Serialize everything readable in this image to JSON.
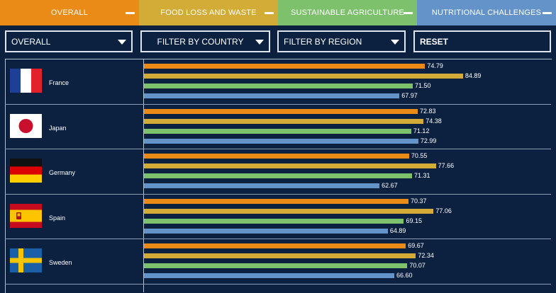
{
  "tabs": [
    {
      "label": "OVERALL",
      "color": "#e98b16"
    },
    {
      "label": "FOOD LOSS AND WASTE",
      "color": "#d3ac37"
    },
    {
      "label": "SUSTAINABLE AGRICULTURE",
      "color": "#7ec16d"
    },
    {
      "label": "NUTRITIONAL CHALLENGES",
      "color": "#6493c9"
    }
  ],
  "filters": {
    "category": "OVERALL",
    "country": "FILTER BY COUNTRY",
    "region": "FILTER BY REGION",
    "reset": "RESET"
  },
  "chart_data": {
    "type": "bar",
    "categories": [
      "France",
      "Japan",
      "Germany",
      "Spain",
      "Sweden"
    ],
    "series": [
      {
        "name": "OVERALL",
        "color": "#e98b16",
        "values": [
          74.79,
          72.83,
          70.55,
          70.37,
          69.67
        ]
      },
      {
        "name": "FOOD LOSS AND WASTE",
        "color": "#d3ac37",
        "values": [
          84.89,
          74.38,
          77.66,
          77.06,
          72.34
        ]
      },
      {
        "name": "SUSTAINABLE AGRICULTURE",
        "color": "#7ec16d",
        "values": [
          71.5,
          71.12,
          71.31,
          69.15,
          70.07
        ]
      },
      {
        "name": "NUTRITIONAL CHALLENGES",
        "color": "#6493c9",
        "values": [
          "67.97",
          "72.99",
          "62.67",
          "64.89",
          "66.60"
        ]
      }
    ],
    "labels": [
      [
        "74.79",
        "84.89",
        "71.50",
        "67.97"
      ],
      [
        "72.83",
        "74.38",
        "71.12",
        "72.99"
      ],
      [
        "70.55",
        "77.66",
        "71.31",
        "62.67"
      ],
      [
        "70.37",
        "77.06",
        "69.15",
        "64.89"
      ],
      [
        "69.67",
        "72.34",
        "70.07",
        "66.60"
      ]
    ]
  },
  "flags": [
    "france-flag-icon",
    "japan-flag-icon",
    "germany-flag-icon",
    "spain-flag-icon",
    "sweden-flag-icon"
  ]
}
